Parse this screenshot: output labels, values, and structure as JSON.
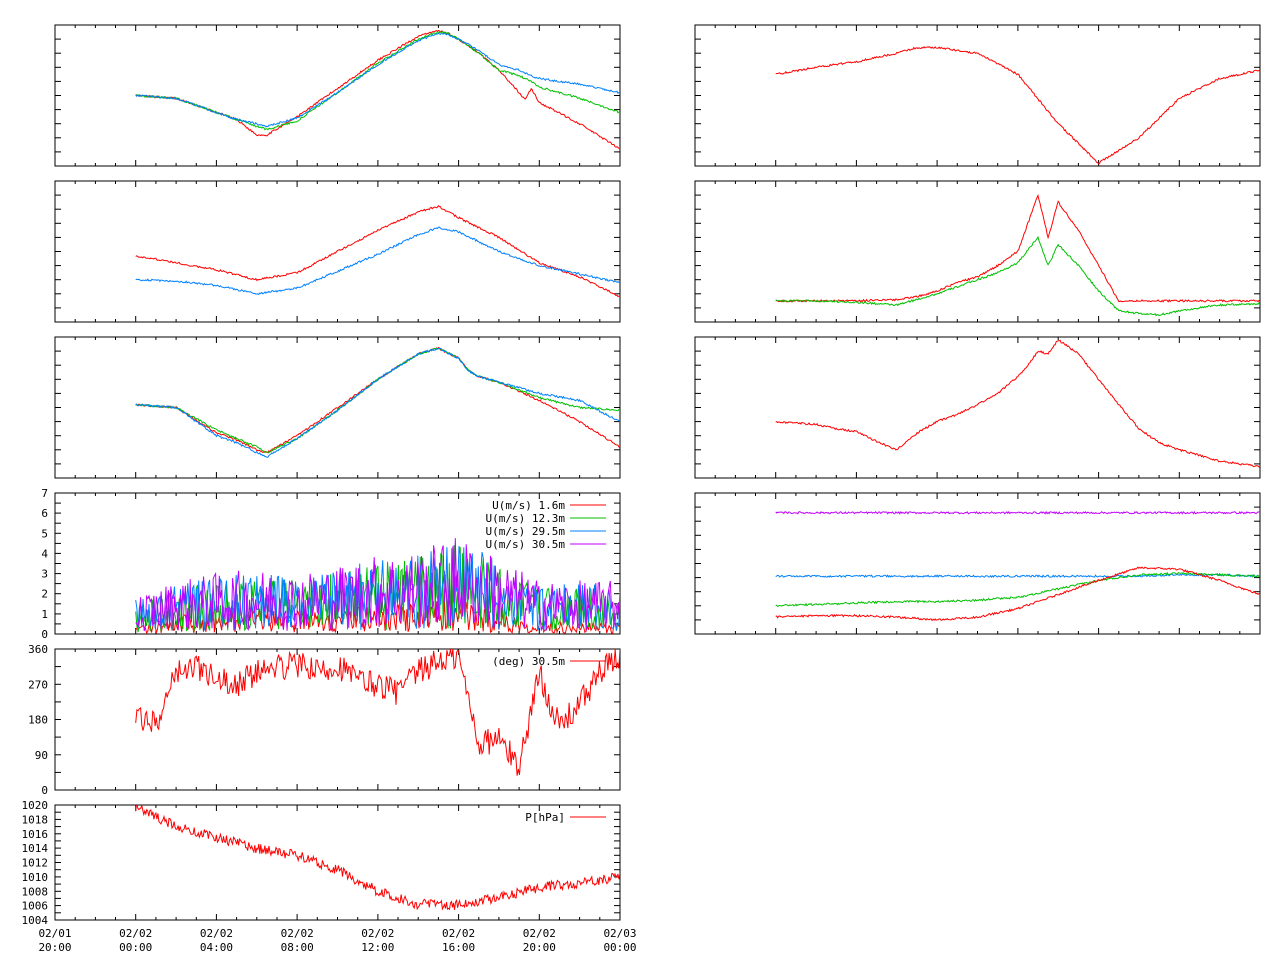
{
  "colors": {
    "red": "#ff0000",
    "green": "#00c000",
    "blue": "#0080ff",
    "purple": "#c000ff",
    "axis": "#000000"
  },
  "time_axis": {
    "tick_labels": [
      [
        "02/01",
        "20:00"
      ],
      [
        "02/02",
        "00:00"
      ],
      [
        "02/02",
        "04:00"
      ],
      [
        "02/02",
        "08:00"
      ],
      [
        "02/02",
        "12:00"
      ],
      [
        "02/02",
        "16:00"
      ],
      [
        "02/02",
        "20:00"
      ],
      [
        "02/03",
        "00:00"
      ]
    ],
    "hours_range": [
      -4,
      24
    ]
  },
  "chart_data": [
    {
      "type": "line",
      "panel": "left-1",
      "title": "",
      "xlabel": "",
      "ylabel": "",
      "yticks_labeled": false,
      "ylim": [
        0,
        100
      ],
      "x": [
        0,
        2,
        4,
        5,
        6,
        6.5,
        8,
        10,
        12,
        14,
        15,
        15.5,
        16,
        17,
        18,
        19,
        19.3,
        19.6,
        20,
        22,
        24
      ],
      "series": [
        {
          "color": "red",
          "values": [
            50,
            48,
            38,
            33,
            22,
            22,
            35,
            55,
            75,
            92,
            96,
            94,
            90,
            80,
            68,
            52,
            47,
            55,
            45,
            30,
            12
          ]
        },
        {
          "color": "green",
          "values": [
            50,
            48,
            38,
            33,
            28,
            26,
            32,
            52,
            73,
            90,
            95,
            94,
            90,
            80,
            68,
            64,
            62,
            60,
            56,
            48,
            38
          ]
        },
        {
          "color": "blue",
          "values": [
            50,
            48,
            38,
            33,
            30,
            28,
            34,
            52,
            72,
            89,
            94,
            93,
            90,
            82,
            72,
            68,
            66,
            64,
            62,
            58,
            52
          ]
        }
      ]
    },
    {
      "type": "line",
      "panel": "left-2",
      "title": "",
      "xlabel": "",
      "ylabel": "",
      "yticks_labeled": false,
      "ylim": [
        0,
        100
      ],
      "x": [
        0,
        2,
        4,
        6,
        8,
        10,
        12,
        14,
        15,
        16,
        18,
        20,
        22,
        24
      ],
      "series": [
        {
          "color": "red",
          "values": [
            47,
            42,
            37,
            30,
            35,
            50,
            65,
            78,
            82,
            74,
            60,
            42,
            32,
            18
          ]
        },
        {
          "color": "blue",
          "values": [
            30,
            29,
            26,
            20,
            24,
            36,
            48,
            62,
            67,
            64,
            50,
            40,
            34,
            28
          ]
        }
      ]
    },
    {
      "type": "line",
      "panel": "left-3",
      "title": "",
      "xlabel": "",
      "ylabel": "",
      "yticks_labeled": false,
      "ylim": [
        0,
        100
      ],
      "x": [
        0,
        2,
        4,
        5,
        6,
        6.5,
        8,
        10,
        12,
        14,
        15,
        16,
        16.5,
        17,
        18,
        20,
        22,
        24
      ],
      "series": [
        {
          "color": "red",
          "values": [
            52,
            50,
            32,
            27,
            20,
            18,
            30,
            50,
            70,
            88,
            92,
            85,
            76,
            72,
            68,
            55,
            40,
            22
          ]
        },
        {
          "color": "green",
          "values": [
            52,
            50,
            34,
            28,
            22,
            18,
            28,
            48,
            70,
            88,
            92,
            85,
            76,
            72,
            68,
            57,
            50,
            48
          ]
        },
        {
          "color": "blue",
          "values": [
            52,
            50,
            30,
            25,
            18,
            15,
            28,
            48,
            70,
            88,
            92,
            85,
            76,
            72,
            68,
            60,
            55,
            40
          ]
        }
      ]
    },
    {
      "type": "line",
      "panel": "left-4",
      "title": "",
      "xlabel": "",
      "ylabel": "",
      "ylim": [
        0,
        7
      ],
      "yticks": [
        0,
        1,
        2,
        3,
        4,
        5,
        6,
        7
      ],
      "x": [
        0,
        2,
        4,
        6,
        8,
        10,
        12,
        14,
        16,
        18,
        20,
        22,
        24
      ],
      "series": [
        {
          "name": "U(m/s)  1.6m",
          "color": "red",
          "values": [
            0.2,
            0.5,
            0.6,
            0.7,
            0.6,
            0.6,
            0.8,
            0.8,
            1.0,
            0.6,
            0.4,
            0.3,
            0.3
          ]
        },
        {
          "name": "U(m/s) 12.3m",
          "color": "green",
          "values": [
            0.8,
            1.2,
            1.4,
            1.5,
            1.4,
            1.6,
            1.9,
            2.0,
            2.4,
            1.8,
            1.2,
            1.2,
            1.2
          ]
        },
        {
          "name": "U(m/s) 29.5m",
          "color": "blue",
          "values": [
            0.9,
            1.3,
            1.5,
            1.6,
            1.5,
            1.7,
            2.0,
            2.1,
            2.5,
            1.9,
            1.3,
            1.3,
            1.3
          ]
        },
        {
          "name": "U(m/s) 30.5m",
          "color": "purple",
          "values": [
            1.0,
            1.4,
            1.6,
            1.7,
            1.6,
            1.8,
            2.1,
            2.2,
            2.6,
            2.0,
            1.4,
            1.4,
            1.4
          ]
        }
      ]
    },
    {
      "type": "line",
      "panel": "left-5",
      "title": "",
      "xlabel": "",
      "ylabel": "",
      "ylim": [
        0,
        360
      ],
      "yticks": [
        0,
        90,
        180,
        270,
        360
      ],
      "x": [
        0,
        1,
        2,
        3,
        4,
        5,
        6,
        7,
        8,
        9,
        10,
        11,
        12,
        13,
        14,
        15,
        16,
        17,
        18,
        19,
        20,
        21,
        22,
        23,
        24
      ],
      "series": [
        {
          "name": "(deg)  30.5m",
          "color": "red",
          "values": [
            180,
            170,
            300,
            320,
            280,
            270,
            300,
            310,
            320,
            300,
            320,
            280,
            270,
            250,
            300,
            330,
            340,
            120,
            130,
            60,
            300,
            160,
            220,
            300,
            340
          ]
        }
      ]
    },
    {
      "type": "line",
      "panel": "left-6",
      "title": "",
      "xlabel": "",
      "ylabel": "",
      "ylim": [
        1004,
        1020
      ],
      "yticks": [
        1004,
        1006,
        1008,
        1010,
        1012,
        1014,
        1016,
        1018,
        1020
      ],
      "x": [
        0,
        2,
        4,
        6,
        8,
        10,
        12,
        14,
        16,
        18,
        20,
        22,
        24
      ],
      "series": [
        {
          "name": "P[hPa]",
          "color": "red",
          "values": [
            1019.8,
            1017.0,
            1015.5,
            1014.0,
            1013.0,
            1011.0,
            1008.0,
            1006.2,
            1006.1,
            1007.2,
            1008.5,
            1009.2,
            1010.0
          ]
        }
      ]
    },
    {
      "type": "line",
      "panel": "right-1",
      "title": "",
      "xlabel": "",
      "ylabel": "",
      "yticks_labeled": false,
      "ylim": [
        0,
        100
      ],
      "x": [
        0,
        2,
        4,
        6,
        7,
        8,
        10,
        12,
        14,
        16,
        18,
        20,
        22,
        24
      ],
      "series": [
        {
          "color": "red",
          "values": [
            65,
            70,
            74,
            80,
            84,
            84,
            80,
            65,
            30,
            2,
            20,
            48,
            62,
            68
          ]
        }
      ]
    },
    {
      "type": "line",
      "panel": "right-2",
      "title": "",
      "xlabel": "",
      "ylabel": "",
      "yticks_labeled": false,
      "ylim": [
        0,
        100
      ],
      "x": [
        0,
        2,
        4,
        6,
        7,
        8,
        9,
        10,
        11,
        12,
        13,
        13.5,
        14,
        15,
        16,
        17,
        18,
        19,
        20,
        22,
        24
      ],
      "series": [
        {
          "color": "red",
          "values": [
            15,
            15,
            15,
            16,
            18,
            22,
            28,
            32,
            40,
            50,
            90,
            60,
            85,
            65,
            40,
            15,
            15,
            15,
            15,
            15,
            15
          ]
        },
        {
          "color": "green",
          "values": [
            15,
            15,
            14,
            12,
            16,
            20,
            25,
            30,
            35,
            42,
            60,
            40,
            55,
            40,
            22,
            8,
            6,
            5,
            8,
            12,
            13
          ]
        }
      ]
    },
    {
      "type": "line",
      "panel": "right-3",
      "title": "",
      "xlabel": "",
      "ylabel": "",
      "yticks_labeled": false,
      "ylim": [
        0,
        100
      ],
      "x": [
        0,
        2,
        3,
        4,
        5,
        6,
        7,
        8,
        9,
        10,
        11,
        12,
        12.5,
        13,
        13.5,
        14,
        15,
        16,
        17,
        18,
        19,
        20,
        22,
        24
      ],
      "series": [
        {
          "color": "red",
          "values": [
            40,
            38,
            35,
            33,
            26,
            20,
            32,
            40,
            45,
            52,
            60,
            72,
            80,
            90,
            88,
            98,
            88,
            70,
            52,
            35,
            25,
            20,
            12,
            8
          ]
        }
      ]
    },
    {
      "type": "line",
      "panel": "right-4",
      "title": "",
      "xlabel": "",
      "ylabel": "",
      "yticks_labeled": false,
      "ylim": [
        0,
        100
      ],
      "x": [
        0,
        2,
        4,
        6,
        8,
        10,
        12,
        14,
        16,
        18,
        20,
        22,
        24
      ],
      "series": [
        {
          "color": "purple",
          "values": [
            86,
            86,
            86,
            86,
            86,
            86,
            86,
            86,
            86,
            86,
            86,
            86,
            86
          ]
        },
        {
          "color": "blue",
          "values": [
            41,
            41,
            41,
            41,
            41,
            41,
            41,
            41,
            41,
            41,
            42,
            42,
            41
          ]
        },
        {
          "color": "green",
          "values": [
            20,
            21,
            22,
            23,
            23,
            24,
            26,
            32,
            38,
            42,
            43,
            42,
            41
          ]
        },
        {
          "color": "red",
          "values": [
            12,
            13,
            13,
            12,
            10,
            12,
            18,
            28,
            38,
            47,
            46,
            38,
            28
          ]
        }
      ]
    }
  ]
}
